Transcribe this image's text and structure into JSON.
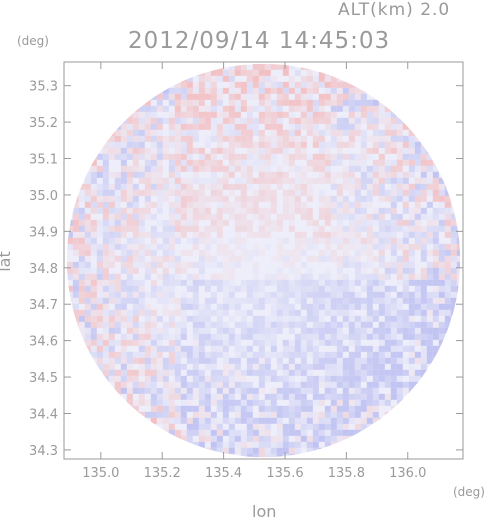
{
  "header": {
    "altitude_label": "ALT(km) 2.0",
    "timestamp": "2012/09/14 14:45:03"
  },
  "axes": {
    "y_unit": "(deg)",
    "x_unit": "(deg)",
    "ylabel": "lat",
    "xlabel": "lon"
  },
  "chart_data": {
    "type": "heatmap",
    "title": "2012/09/14 14:45:03",
    "xlabel": "lon",
    "ylabel": "lat",
    "xlim": [
      134.88,
      136.18
    ],
    "ylim": [
      34.275,
      35.365
    ],
    "x_ticks": [
      135.0,
      135.2,
      135.4,
      135.6,
      135.8,
      136.0
    ],
    "x_tick_labels": [
      "135.0",
      "135.2",
      "135.4",
      "135.6",
      "135.8",
      "136.0"
    ],
    "y_ticks": [
      34.3,
      34.4,
      34.5,
      34.6,
      34.7,
      34.8,
      34.9,
      35.0,
      35.1,
      35.2,
      35.3
    ],
    "y_tick_labels": [
      "34.3",
      "34.4",
      "34.5",
      "34.6",
      "34.7",
      "34.8",
      "34.9",
      "35.0",
      "35.1",
      "35.2",
      "35.3"
    ],
    "coverage": {
      "center_lon": 135.53,
      "center_lat": 34.82,
      "radius_deg_lat": 0.54
    },
    "colors": {
      "positive": "#f4b4b4",
      "negative": "#b4b8f0",
      "neutral": "#eeeefa"
    },
    "grid": false
  }
}
